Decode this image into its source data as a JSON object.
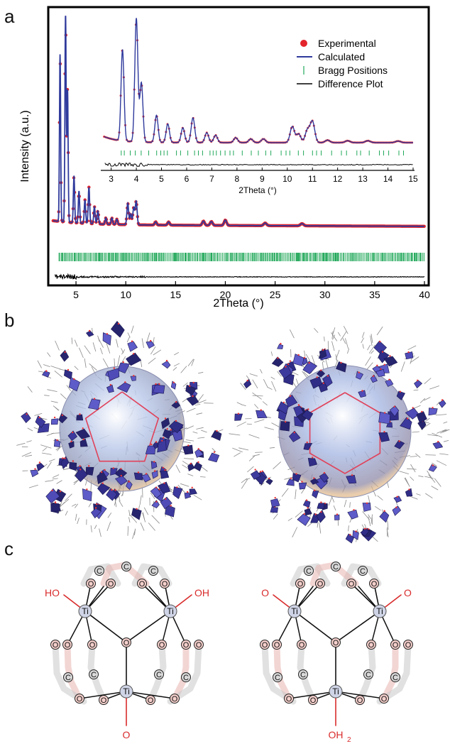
{
  "panels": {
    "a": "a",
    "b": "b",
    "c": "c"
  },
  "chart_data": {
    "type": "line",
    "main": {
      "xlabel": "2Theta (°)",
      "ylabel": "Intensity (a.u.)",
      "xlim": [
        2.5,
        40
      ],
      "xticks": [
        5,
        10,
        15,
        20,
        25,
        30,
        35,
        40
      ],
      "legend_position": "top-right",
      "legend": [
        "Experimental",
        "Calculated",
        "Bragg Positions",
        "Difference Plot"
      ],
      "peaks": [
        {
          "x": 3.4,
          "y": 0.78
        },
        {
          "x": 3.95,
          "y": 0.97
        },
        {
          "x": 4.15,
          "y": 0.62
        },
        {
          "x": 4.8,
          "y": 0.22
        },
        {
          "x": 5.3,
          "y": 0.15
        },
        {
          "x": 5.9,
          "y": 0.11
        },
        {
          "x": 6.3,
          "y": 0.17
        },
        {
          "x": 6.85,
          "y": 0.08
        },
        {
          "x": 7.2,
          "y": 0.06
        },
        {
          "x": 8.0,
          "y": 0.03
        },
        {
          "x": 8.6,
          "y": 0.03
        },
        {
          "x": 9.1,
          "y": 0.025
        },
        {
          "x": 10.2,
          "y": 0.1
        },
        {
          "x": 10.5,
          "y": 0.05
        },
        {
          "x": 10.8,
          "y": 0.08
        },
        {
          "x": 11.05,
          "y": 0.11
        },
        {
          "x": 13.0,
          "y": 0.015
        },
        {
          "x": 14.3,
          "y": 0.015
        },
        {
          "x": 17.8,
          "y": 0.02
        },
        {
          "x": 18.6,
          "y": 0.018
        },
        {
          "x": 20.0,
          "y": 0.025
        },
        {
          "x": 24.0,
          "y": 0.012
        },
        {
          "x": 27.7,
          "y": 0.01
        }
      ]
    },
    "inset": {
      "xlabel": "2Theta (°)",
      "xlim": [
        2.7,
        15
      ],
      "xticks": [
        3,
        4,
        5,
        6,
        7,
        8,
        9,
        10,
        11,
        12,
        13,
        14,
        15
      ],
      "peaks": [
        {
          "x": 3.45,
          "y": 0.74
        },
        {
          "x": 4.0,
          "y": 1.0
        },
        {
          "x": 4.2,
          "y": 0.48
        },
        {
          "x": 4.8,
          "y": 0.22
        },
        {
          "x": 5.25,
          "y": 0.15
        },
        {
          "x": 5.85,
          "y": 0.12
        },
        {
          "x": 6.25,
          "y": 0.2
        },
        {
          "x": 6.8,
          "y": 0.08
        },
        {
          "x": 7.15,
          "y": 0.06
        },
        {
          "x": 7.95,
          "y": 0.04
        },
        {
          "x": 8.55,
          "y": 0.03
        },
        {
          "x": 9.05,
          "y": 0.03
        },
        {
          "x": 10.2,
          "y": 0.13
        },
        {
          "x": 10.45,
          "y": 0.07
        },
        {
          "x": 10.8,
          "y": 0.1
        },
        {
          "x": 11.0,
          "y": 0.17
        },
        {
          "x": 11.6,
          "y": 0.02
        },
        {
          "x": 12.4,
          "y": 0.015
        },
        {
          "x": 13.2,
          "y": 0.015
        },
        {
          "x": 14.4,
          "y": 0.012
        }
      ]
    },
    "colors": {
      "experimental": "#e3242b",
      "calculated": "#2f3a9c",
      "bragg": "#22a85a",
      "difference": "#000000"
    }
  },
  "scheme_left": {
    "top_left": "HO",
    "top_right": "OH",
    "bottom": "O",
    "metal": "Ti",
    "oxygen": "O",
    "carbon": "C"
  },
  "scheme_right": {
    "top_left": "O",
    "top_right": "O",
    "bottom": "OH",
    "bottom_sub": "2",
    "metal": "Ti",
    "oxygen": "O",
    "carbon": "C"
  }
}
